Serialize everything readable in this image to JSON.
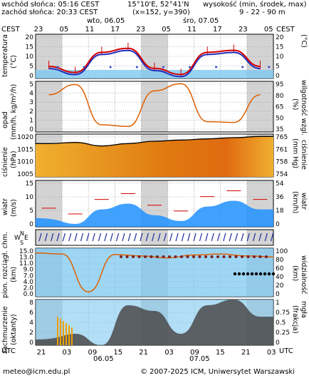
{
  "header": {
    "sunrise": "wschód słońca: 05:16 CEST",
    "sunset": "zachód słońca: 20:33 CEST",
    "coords": "15°10'E, 52°41'N",
    "grid": "(x=152, y=390)",
    "height_title": "wysokość (min, środek, max)",
    "height_values": "9 - 22 - 90 m",
    "day1": "wto, 06.05",
    "day2": "śro, 07.05",
    "tz_left": "CEST",
    "tz_right": "CEST"
  },
  "top_hours": [
    "23",
    "05",
    "11",
    "17",
    "23",
    "05",
    "11",
    "17",
    "23",
    "05"
  ],
  "bottom_hours": [
    "21",
    "03",
    "09",
    "15",
    "21",
    "03",
    "09",
    "15",
    "21",
    "03"
  ],
  "bottom_tz_left": "UTC",
  "bottom_tz_right": "UTC",
  "bottom_dates": [
    "06.05",
    "07.05"
  ],
  "footer": {
    "left": "meteo@icm.edu.pl",
    "right": "© 2007-2025 ICM, Uniwersytet Warszawski"
  },
  "panels": {
    "temp": {
      "left_label": "temperatura",
      "left_unit": "(°C)",
      "right_label": "temperatura",
      "right_unit": "(°C)",
      "ticks": [
        "0",
        "5",
        "10",
        "15",
        "20"
      ],
      "ticks_right": [
        "0",
        "5",
        "10",
        "15",
        "20"
      ]
    },
    "precip": {
      "left_label": "opad",
      "left_unit": "(mm/h, kg/m²/h)",
      "right_label": "wilgotność wzgl.",
      "right_unit": "(%)",
      "ticks": [
        "0",
        "1",
        "2",
        "3",
        "4",
        "5"
      ],
      "ticks_right": [
        "35",
        "50",
        "65",
        "80",
        "95"
      ]
    },
    "pressure": {
      "left_label": "ciśnienie",
      "left_unit": "(hPa)",
      "right_label": "ciśnienie",
      "right_unit": "(mm Hg)",
      "ticks": [
        "1005",
        "1010",
        "1015",
        "1020"
      ],
      "ticks_right": [
        "754",
        "758",
        "761",
        "765"
      ]
    },
    "wind": {
      "left_label": "wiatr",
      "left_unit": "(m/s)",
      "right_label": "wiatr",
      "right_unit": "(km/h)",
      "ticks": [
        "0",
        "5",
        "10",
        "15"
      ],
      "ticks_right": [
        "0",
        "18",
        "36",
        "54"
      ]
    },
    "dir": {
      "left": "W",
      "top": "N",
      "right": "E",
      "bottom": "S"
    },
    "vis": {
      "left_label": "pion. rozciągł. chm.",
      "left_unit": "(km)",
      "right_label": "widzialność",
      "right_unit": "(km)",
      "ticks": [
        "0.0",
        "2.0",
        "4.0",
        "7.0",
        "9.0",
        "11.0",
        "13.0",
        "15.0"
      ],
      "ticks_right": [
        "0",
        "20",
        "40",
        "60",
        "80",
        "100"
      ]
    },
    "cloud": {
      "left_label": "zachmurzenie",
      "left_unit": "(oktanty)",
      "right_label": "mgła",
      "right_unit": "(frakcja)",
      "ticks": [
        "0",
        "2",
        "4",
        "6",
        "8"
      ],
      "ticks_right": [
        "0",
        "0.25",
        "0.5",
        "0.75",
        "1"
      ]
    }
  },
  "colors": {
    "grey_band": "#d3d3d3",
    "blue": "#1e90ff",
    "red": "#d40000",
    "orange": "#e06000",
    "sky": "#7ec8f0"
  },
  "chart_data": [
    {
      "type": "line",
      "name": "temperatura",
      "x": [
        0,
        6,
        12,
        18,
        24,
        30,
        36,
        42,
        48
      ],
      "series": [
        {
          "name": "temperatura",
          "values": [
            6,
            3,
            13,
            15,
            5,
            2,
            13,
            14,
            6
          ]
        }
      ],
      "ylim": [
        0,
        20
      ]
    },
    {
      "type": "line",
      "name": "wilgotność",
      "x": [
        0,
        6,
        12,
        18,
        24,
        30,
        36,
        42,
        48
      ],
      "series": [
        {
          "name": "wilgotność",
          "values": [
            80,
            93,
            42,
            40,
            85,
            94,
            46,
            45,
            80
          ]
        }
      ],
      "ylim": [
        35,
        95
      ]
    },
    {
      "type": "area",
      "name": "ciśnienie",
      "x": [
        0,
        6,
        12,
        18,
        24,
        30,
        36,
        42,
        48
      ],
      "series": [
        {
          "name": "ciśnienie",
          "values": [
            1018,
            1018.5,
            1017,
            1018,
            1019,
            1019.5,
            1020,
            1020.5,
            1021
          ]
        }
      ],
      "ylim": [
        1005,
        1021
      ]
    },
    {
      "type": "line",
      "name": "wiatr",
      "x": [
        0,
        6,
        12,
        18,
        24,
        30,
        36,
        42,
        48
      ],
      "series": [
        {
          "name": "wiatr",
          "values": [
            3,
            1,
            6,
            8,
            4,
            2,
            7,
            9,
            6
          ]
        }
      ],
      "ylim": [
        0,
        15
      ]
    },
    {
      "type": "area",
      "name": "zachmurzenie",
      "x": [
        0,
        6,
        12,
        18,
        24,
        30,
        36,
        42,
        48
      ],
      "series": [
        {
          "name": "zachmurzenie",
          "values": [
            1,
            2,
            0,
            7,
            6,
            2,
            7,
            8,
            5
          ]
        }
      ],
      "ylim": [
        0,
        8
      ]
    }
  ]
}
